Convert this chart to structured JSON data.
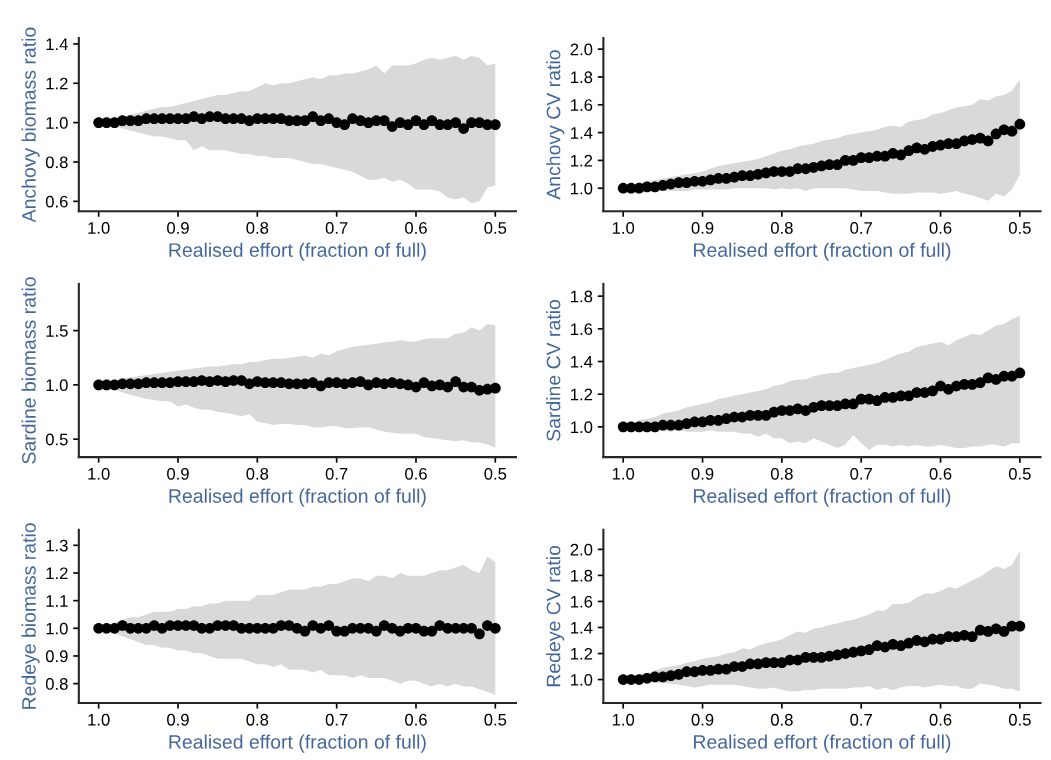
{
  "chart_data": [
    {
      "type": "scatter",
      "xlabel": "Realised effort (fraction of full)",
      "ylabel": "Anchovy biomass ratio",
      "marker": "circle",
      "x": [
        1.0,
        0.99,
        0.98,
        0.97,
        0.96,
        0.95,
        0.94,
        0.93,
        0.92,
        0.91,
        0.9,
        0.89,
        0.88,
        0.87,
        0.86,
        0.85,
        0.84,
        0.83,
        0.82,
        0.81,
        0.8,
        0.79,
        0.78,
        0.77,
        0.76,
        0.75,
        0.74,
        0.73,
        0.72,
        0.71,
        0.7,
        0.69,
        0.68,
        0.67,
        0.66,
        0.65,
        0.64,
        0.63,
        0.62,
        0.61,
        0.6,
        0.59,
        0.58,
        0.57,
        0.56,
        0.55,
        0.54,
        0.53,
        0.52,
        0.51,
        0.5
      ],
      "xlim": [
        1.025,
        0.474
      ],
      "xticks": [
        {
          "value": 1.0,
          "label": "1.0"
        },
        {
          "value": 0.9,
          "label": "0.9"
        },
        {
          "value": 0.8,
          "label": "0.8"
        },
        {
          "value": 0.7,
          "label": "0.7"
        },
        {
          "value": 0.6,
          "label": "0.6"
        },
        {
          "value": 0.5,
          "label": "0.5"
        }
      ],
      "ylim": [
        0.55,
        1.43
      ],
      "yticks": [
        {
          "value": 0.6,
          "label": "0.6"
        },
        {
          "value": 0.8,
          "label": "0.8"
        },
        {
          "value": 1.0,
          "label": "1.0"
        },
        {
          "value": 1.2,
          "label": "1.2"
        },
        {
          "value": 1.4,
          "label": "1.4"
        }
      ],
      "series": [
        {
          "color": "#000000",
          "values": [
            1.0,
            1.0,
            1.0,
            1.01,
            1.01,
            1.01,
            1.02,
            1.02,
            1.02,
            1.02,
            1.02,
            1.02,
            1.03,
            1.02,
            1.03,
            1.03,
            1.02,
            1.02,
            1.02,
            1.01,
            1.02,
            1.02,
            1.02,
            1.02,
            1.01,
            1.01,
            1.01,
            1.03,
            1.01,
            1.02,
            1.0,
            0.99,
            1.02,
            1.01,
            1.0,
            1.01,
            1.01,
            0.98,
            1.0,
            0.99,
            1.01,
            0.99,
            1.01,
            0.99,
            0.99,
            1.0,
            0.97,
            1.0,
            1.0,
            0.99,
            0.99
          ],
          "upper": [
            1.0,
            1.01,
            1.02,
            1.03,
            1.04,
            1.05,
            1.06,
            1.07,
            1.08,
            1.08,
            1.09,
            1.1,
            1.11,
            1.12,
            1.13,
            1.14,
            1.14,
            1.15,
            1.16,
            1.16,
            1.18,
            1.2,
            1.19,
            1.2,
            1.2,
            1.21,
            1.22,
            1.23,
            1.22,
            1.24,
            1.24,
            1.25,
            1.25,
            1.26,
            1.27,
            1.29,
            1.25,
            1.29,
            1.29,
            1.29,
            1.3,
            1.32,
            1.33,
            1.32,
            1.33,
            1.34,
            1.32,
            1.34,
            1.33,
            1.29,
            1.3
          ],
          "lower": [
            1.0,
            0.99,
            0.98,
            0.97,
            0.96,
            0.95,
            0.94,
            0.93,
            0.93,
            0.92,
            0.91,
            0.91,
            0.86,
            0.88,
            0.86,
            0.86,
            0.86,
            0.85,
            0.84,
            0.84,
            0.83,
            0.83,
            0.82,
            0.82,
            0.82,
            0.81,
            0.8,
            0.79,
            0.79,
            0.78,
            0.77,
            0.76,
            0.75,
            0.73,
            0.71,
            0.71,
            0.72,
            0.7,
            0.71,
            0.69,
            0.66,
            0.66,
            0.66,
            0.65,
            0.62,
            0.61,
            0.62,
            0.59,
            0.6,
            0.67,
            0.68
          ]
        }
      ]
    },
    {
      "type": "scatter",
      "xlabel": "Realised effort (fraction of full)",
      "ylabel": "Anchovy CV ratio",
      "marker": "circle",
      "x": [
        1.0,
        0.99,
        0.98,
        0.97,
        0.96,
        0.95,
        0.94,
        0.93,
        0.92,
        0.91,
        0.9,
        0.89,
        0.88,
        0.87,
        0.86,
        0.85,
        0.84,
        0.83,
        0.82,
        0.81,
        0.8,
        0.79,
        0.78,
        0.77,
        0.76,
        0.75,
        0.74,
        0.73,
        0.72,
        0.71,
        0.7,
        0.69,
        0.68,
        0.67,
        0.66,
        0.65,
        0.64,
        0.63,
        0.62,
        0.61,
        0.6,
        0.59,
        0.58,
        0.57,
        0.56,
        0.55,
        0.54,
        0.53,
        0.52,
        0.51,
        0.5
      ],
      "xlim": [
        1.025,
        0.474
      ],
      "xticks": [
        {
          "value": 1.0,
          "label": "1.0"
        },
        {
          "value": 0.9,
          "label": "0.9"
        },
        {
          "value": 0.8,
          "label": "0.8"
        },
        {
          "value": 0.7,
          "label": "0.7"
        },
        {
          "value": 0.6,
          "label": "0.6"
        },
        {
          "value": 0.5,
          "label": "0.5"
        }
      ],
      "ylim": [
        0.835,
        2.08
      ],
      "yticks": [
        {
          "value": 1.0,
          "label": "1.0"
        },
        {
          "value": 1.2,
          "label": "1.2"
        },
        {
          "value": 1.4,
          "label": "1.4"
        },
        {
          "value": 1.6,
          "label": "1.6"
        },
        {
          "value": 1.8,
          "label": "1.8"
        },
        {
          "value": 2.0,
          "label": "2.0"
        }
      ],
      "series": [
        {
          "color": "#000000",
          "values": [
            1.0,
            1.0,
            1.0,
            1.01,
            1.01,
            1.02,
            1.03,
            1.04,
            1.04,
            1.05,
            1.05,
            1.06,
            1.07,
            1.07,
            1.08,
            1.09,
            1.09,
            1.1,
            1.11,
            1.12,
            1.12,
            1.12,
            1.14,
            1.14,
            1.15,
            1.16,
            1.17,
            1.17,
            1.2,
            1.2,
            1.22,
            1.22,
            1.23,
            1.23,
            1.25,
            1.24,
            1.27,
            1.29,
            1.28,
            1.3,
            1.31,
            1.32,
            1.32,
            1.34,
            1.35,
            1.36,
            1.34,
            1.39,
            1.42,
            1.41,
            1.46
          ],
          "upper": [
            1.0,
            1.02,
            1.04,
            1.05,
            1.06,
            1.07,
            1.08,
            1.09,
            1.1,
            1.11,
            1.12,
            1.14,
            1.16,
            1.17,
            1.18,
            1.19,
            1.2,
            1.21,
            1.23,
            1.25,
            1.27,
            1.28,
            1.3,
            1.31,
            1.32,
            1.34,
            1.35,
            1.36,
            1.38,
            1.39,
            1.4,
            1.41,
            1.42,
            1.44,
            1.45,
            1.44,
            1.48,
            1.49,
            1.5,
            1.53,
            1.54,
            1.56,
            1.58,
            1.59,
            1.6,
            1.64,
            1.63,
            1.66,
            1.67,
            1.7,
            1.78
          ],
          "lower": [
            1.0,
            0.99,
            0.99,
            0.98,
            0.98,
            0.98,
            0.98,
            0.98,
            0.98,
            0.99,
            0.99,
            0.99,
            0.99,
            0.99,
            1.0,
            1.0,
            1.0,
            1.0,
            1.0,
            0.99,
            1.0,
            0.99,
            1.0,
            0.98,
            1.0,
            1.0,
            1.0,
            1.0,
            1.0,
            0.99,
            0.98,
            0.98,
            0.98,
            0.97,
            0.96,
            0.96,
            0.96,
            0.97,
            0.97,
            0.97,
            0.96,
            0.97,
            0.98,
            0.96,
            0.95,
            0.93,
            0.91,
            0.96,
            0.94,
            0.99,
            1.1
          ]
        }
      ]
    },
    {
      "type": "scatter",
      "xlabel": "Realised effort (fraction of full)",
      "ylabel": "Sardine biomass ratio",
      "marker": "circle",
      "x": [
        1.0,
        0.99,
        0.98,
        0.97,
        0.96,
        0.95,
        0.94,
        0.93,
        0.92,
        0.91,
        0.9,
        0.89,
        0.88,
        0.87,
        0.86,
        0.85,
        0.84,
        0.83,
        0.82,
        0.81,
        0.8,
        0.79,
        0.78,
        0.77,
        0.76,
        0.75,
        0.74,
        0.73,
        0.72,
        0.71,
        0.7,
        0.69,
        0.68,
        0.67,
        0.66,
        0.65,
        0.64,
        0.63,
        0.62,
        0.61,
        0.6,
        0.59,
        0.58,
        0.57,
        0.56,
        0.55,
        0.54,
        0.53,
        0.52,
        0.51,
        0.5
      ],
      "xlim": [
        1.025,
        0.474
      ],
      "xticks": [
        {
          "value": 1.0,
          "label": "1.0"
        },
        {
          "value": 0.9,
          "label": "0.9"
        },
        {
          "value": 0.8,
          "label": "0.8"
        },
        {
          "value": 0.7,
          "label": "0.7"
        },
        {
          "value": 0.6,
          "label": "0.6"
        },
        {
          "value": 0.5,
          "label": "0.5"
        }
      ],
      "ylim": [
        0.335,
        1.93
      ],
      "yticks": [
        {
          "value": 0.5,
          "label": "0.5"
        },
        {
          "value": 1.0,
          "label": "1.0"
        },
        {
          "value": 1.5,
          "label": "1.5"
        }
      ],
      "series": [
        {
          "color": "#000000",
          "values": [
            1.0,
            1.0,
            1.0,
            1.01,
            1.01,
            1.01,
            1.02,
            1.02,
            1.02,
            1.02,
            1.03,
            1.03,
            1.03,
            1.04,
            1.03,
            1.04,
            1.03,
            1.04,
            1.04,
            1.01,
            1.03,
            1.02,
            1.02,
            1.02,
            1.01,
            1.01,
            1.01,
            1.02,
            0.99,
            1.02,
            1.02,
            1.01,
            1.02,
            1.03,
            1.0,
            1.02,
            1.01,
            1.02,
            1.01,
            1.0,
            0.98,
            1.02,
            0.99,
            1.0,
            0.98,
            1.03,
            0.98,
            0.98,
            0.95,
            0.96,
            0.97
          ],
          "upper": [
            1.0,
            1.02,
            1.04,
            1.06,
            1.07,
            1.08,
            1.09,
            1.1,
            1.11,
            1.12,
            1.13,
            1.14,
            1.15,
            1.16,
            1.17,
            1.17,
            1.18,
            1.19,
            1.19,
            1.21,
            1.21,
            1.23,
            1.24,
            1.24,
            1.25,
            1.26,
            1.27,
            1.25,
            1.29,
            1.27,
            1.31,
            1.33,
            1.35,
            1.36,
            1.37,
            1.38,
            1.39,
            1.4,
            1.41,
            1.4,
            1.4,
            1.42,
            1.43,
            1.43,
            1.43,
            1.47,
            1.48,
            1.53,
            1.5,
            1.56,
            1.55
          ],
          "lower": [
            1.0,
            0.98,
            0.96,
            0.93,
            0.91,
            0.89,
            0.87,
            0.86,
            0.85,
            0.85,
            0.8,
            0.82,
            0.79,
            0.77,
            0.77,
            0.75,
            0.74,
            0.73,
            0.71,
            0.73,
            0.66,
            0.65,
            0.63,
            0.64,
            0.64,
            0.63,
            0.63,
            0.61,
            0.61,
            0.62,
            0.62,
            0.6,
            0.6,
            0.61,
            0.61,
            0.59,
            0.57,
            0.56,
            0.55,
            0.55,
            0.55,
            0.52,
            0.51,
            0.5,
            0.49,
            0.48,
            0.49,
            0.47,
            0.47,
            0.45,
            0.42
          ]
        }
      ]
    },
    {
      "type": "scatter",
      "xlabel": "Realised effort (fraction of full)",
      "ylabel": "Sardine CV ratio",
      "marker": "circle",
      "x": [
        1.0,
        0.99,
        0.98,
        0.97,
        0.96,
        0.95,
        0.94,
        0.93,
        0.92,
        0.91,
        0.9,
        0.89,
        0.88,
        0.87,
        0.86,
        0.85,
        0.84,
        0.83,
        0.82,
        0.81,
        0.8,
        0.79,
        0.78,
        0.77,
        0.76,
        0.75,
        0.74,
        0.73,
        0.72,
        0.71,
        0.7,
        0.69,
        0.68,
        0.67,
        0.66,
        0.65,
        0.64,
        0.63,
        0.62,
        0.61,
        0.6,
        0.59,
        0.58,
        0.57,
        0.56,
        0.55,
        0.54,
        0.53,
        0.52,
        0.51,
        0.5
      ],
      "xlim": [
        1.025,
        0.474
      ],
      "xticks": [
        {
          "value": 1.0,
          "label": "1.0"
        },
        {
          "value": 0.9,
          "label": "0.9"
        },
        {
          "value": 0.8,
          "label": "0.8"
        },
        {
          "value": 0.7,
          "label": "0.7"
        },
        {
          "value": 0.6,
          "label": "0.6"
        },
        {
          "value": 0.5,
          "label": "0.5"
        }
      ],
      "ylim": [
        0.815,
        1.875
      ],
      "yticks": [
        {
          "value": 1.0,
          "label": "1.0"
        },
        {
          "value": 1.2,
          "label": "1.2"
        },
        {
          "value": 1.4,
          "label": "1.4"
        },
        {
          "value": 1.6,
          "label": "1.6"
        },
        {
          "value": 1.8,
          "label": "1.8"
        }
      ],
      "series": [
        {
          "color": "#000000",
          "values": [
            1.0,
            1.0,
            1.0,
            1.0,
            1.0,
            1.01,
            1.01,
            1.01,
            1.02,
            1.03,
            1.03,
            1.04,
            1.04,
            1.05,
            1.06,
            1.06,
            1.07,
            1.07,
            1.07,
            1.09,
            1.1,
            1.1,
            1.11,
            1.1,
            1.12,
            1.13,
            1.13,
            1.13,
            1.14,
            1.14,
            1.17,
            1.17,
            1.16,
            1.18,
            1.18,
            1.19,
            1.19,
            1.21,
            1.21,
            1.22,
            1.25,
            1.23,
            1.25,
            1.26,
            1.26,
            1.27,
            1.3,
            1.29,
            1.31,
            1.31,
            1.33
          ],
          "upper": [
            1.0,
            1.02,
            1.04,
            1.05,
            1.06,
            1.08,
            1.09,
            1.1,
            1.12,
            1.13,
            1.14,
            1.15,
            1.17,
            1.18,
            1.19,
            1.2,
            1.21,
            1.22,
            1.23,
            1.25,
            1.26,
            1.28,
            1.29,
            1.29,
            1.31,
            1.32,
            1.33,
            1.33,
            1.35,
            1.36,
            1.37,
            1.38,
            1.39,
            1.41,
            1.43,
            1.45,
            1.46,
            1.49,
            1.5,
            1.51,
            1.52,
            1.5,
            1.53,
            1.55,
            1.57,
            1.56,
            1.59,
            1.62,
            1.63,
            1.66,
            1.68
          ],
          "lower": [
            1.0,
            0.99,
            0.99,
            0.98,
            0.98,
            0.98,
            0.97,
            0.98,
            0.97,
            0.97,
            0.97,
            0.98,
            0.97,
            0.97,
            0.97,
            0.96,
            0.96,
            0.94,
            0.96,
            0.93,
            0.93,
            0.9,
            0.91,
            0.9,
            0.93,
            0.91,
            0.89,
            0.87,
            0.89,
            0.95,
            0.9,
            0.86,
            0.89,
            0.89,
            0.88,
            0.89,
            0.88,
            0.89,
            0.88,
            0.88,
            0.89,
            0.88,
            0.87,
            0.87,
            0.88,
            0.88,
            0.89,
            0.89,
            0.88,
            0.9,
            0.9
          ]
        }
      ]
    },
    {
      "type": "scatter",
      "xlabel": "Realised effort (fraction of full)",
      "ylabel": "Redeye biomass ratio",
      "marker": "circle",
      "x": [
        1.0,
        0.99,
        0.98,
        0.97,
        0.96,
        0.95,
        0.94,
        0.93,
        0.92,
        0.91,
        0.9,
        0.89,
        0.88,
        0.87,
        0.86,
        0.85,
        0.84,
        0.83,
        0.82,
        0.81,
        0.8,
        0.79,
        0.78,
        0.77,
        0.76,
        0.75,
        0.74,
        0.73,
        0.72,
        0.71,
        0.7,
        0.69,
        0.68,
        0.67,
        0.66,
        0.65,
        0.64,
        0.63,
        0.62,
        0.61,
        0.6,
        0.59,
        0.58,
        0.57,
        0.56,
        0.55,
        0.54,
        0.53,
        0.52,
        0.51,
        0.5
      ],
      "xlim": [
        1.025,
        0.474
      ],
      "xticks": [
        {
          "value": 1.0,
          "label": "1.0"
        },
        {
          "value": 0.9,
          "label": "0.9"
        },
        {
          "value": 0.8,
          "label": "0.8"
        },
        {
          "value": 0.7,
          "label": "0.7"
        },
        {
          "value": 0.6,
          "label": "0.6"
        },
        {
          "value": 0.5,
          "label": "0.5"
        }
      ],
      "ylim": [
        0.73,
        1.356
      ],
      "yticks": [
        {
          "value": 0.8,
          "label": "0.8"
        },
        {
          "value": 0.9,
          "label": "0.9"
        },
        {
          "value": 1.0,
          "label": "1.0"
        },
        {
          "value": 1.1,
          "label": "1.1"
        },
        {
          "value": 1.2,
          "label": "1.2"
        },
        {
          "value": 1.3,
          "label": "1.3"
        }
      ],
      "series": [
        {
          "color": "#000000",
          "values": [
            1.0,
            1.0,
            1.0,
            1.01,
            1.0,
            1.0,
            1.0,
            1.01,
            1.0,
            1.01,
            1.01,
            1.01,
            1.01,
            1.0,
            1.0,
            1.01,
            1.01,
            1.01,
            1.0,
            1.0,
            1.0,
            1.0,
            1.0,
            1.01,
            1.01,
            1.0,
            0.99,
            1.01,
            1.0,
            1.01,
            0.99,
            0.99,
            1.0,
            1.0,
            1.0,
            0.99,
            1.01,
            1.0,
            0.99,
            1.0,
            1.0,
            0.99,
            0.99,
            1.01,
            1.0,
            1.0,
            1.0,
            1.0,
            0.98,
            1.01,
            1.0
          ],
          "upper": [
            1.0,
            1.01,
            1.02,
            1.03,
            1.04,
            1.04,
            1.05,
            1.06,
            1.06,
            1.06,
            1.07,
            1.07,
            1.08,
            1.08,
            1.09,
            1.09,
            1.1,
            1.1,
            1.1,
            1.1,
            1.12,
            1.12,
            1.12,
            1.13,
            1.14,
            1.14,
            1.14,
            1.15,
            1.15,
            1.16,
            1.16,
            1.17,
            1.18,
            1.18,
            1.17,
            1.19,
            1.19,
            1.18,
            1.2,
            1.19,
            1.19,
            1.19,
            1.2,
            1.21,
            1.21,
            1.22,
            1.23,
            1.21,
            1.2,
            1.26,
            1.24
          ],
          "lower": [
            1.0,
            0.99,
            0.98,
            0.97,
            0.96,
            0.95,
            0.94,
            0.94,
            0.93,
            0.93,
            0.92,
            0.92,
            0.91,
            0.91,
            0.9,
            0.89,
            0.89,
            0.89,
            0.89,
            0.88,
            0.87,
            0.87,
            0.86,
            0.87,
            0.85,
            0.85,
            0.85,
            0.84,
            0.85,
            0.83,
            0.83,
            0.83,
            0.82,
            0.83,
            0.82,
            0.82,
            0.82,
            0.81,
            0.8,
            0.81,
            0.81,
            0.8,
            0.79,
            0.8,
            0.79,
            0.8,
            0.79,
            0.79,
            0.78,
            0.77,
            0.76
          ]
        }
      ]
    },
    {
      "type": "scatter",
      "xlabel": "Realised effort (fraction of full)",
      "ylabel": "Redeye CV ratio",
      "marker": "circle",
      "x": [
        1.0,
        0.99,
        0.98,
        0.97,
        0.96,
        0.95,
        0.94,
        0.93,
        0.92,
        0.91,
        0.9,
        0.89,
        0.88,
        0.87,
        0.86,
        0.85,
        0.84,
        0.83,
        0.82,
        0.81,
        0.8,
        0.79,
        0.78,
        0.77,
        0.76,
        0.75,
        0.74,
        0.73,
        0.72,
        0.71,
        0.7,
        0.69,
        0.68,
        0.67,
        0.66,
        0.65,
        0.64,
        0.63,
        0.62,
        0.61,
        0.6,
        0.59,
        0.58,
        0.57,
        0.56,
        0.55,
        0.54,
        0.53,
        0.52,
        0.51,
        0.5
      ],
      "xlim": [
        1.025,
        0.474
      ],
      "xticks": [
        {
          "value": 1.0,
          "label": "1.0"
        },
        {
          "value": 0.9,
          "label": "0.9"
        },
        {
          "value": 0.8,
          "label": "0.8"
        },
        {
          "value": 0.7,
          "label": "0.7"
        },
        {
          "value": 0.6,
          "label": "0.6"
        },
        {
          "value": 0.5,
          "label": "0.5"
        }
      ],
      "ylim": [
        0.82,
        2.15
      ],
      "yticks": [
        {
          "value": 1.0,
          "label": "1.0"
        },
        {
          "value": 1.2,
          "label": "1.2"
        },
        {
          "value": 1.4,
          "label": "1.4"
        },
        {
          "value": 1.6,
          "label": "1.6"
        },
        {
          "value": 1.8,
          "label": "1.8"
        },
        {
          "value": 2.0,
          "label": "2.0"
        }
      ],
      "series": [
        {
          "color": "#000000",
          "values": [
            1.0,
            1.0,
            1.0,
            1.01,
            1.02,
            1.02,
            1.03,
            1.04,
            1.06,
            1.06,
            1.07,
            1.07,
            1.08,
            1.08,
            1.1,
            1.1,
            1.12,
            1.12,
            1.13,
            1.13,
            1.13,
            1.15,
            1.15,
            1.17,
            1.17,
            1.17,
            1.18,
            1.19,
            1.2,
            1.21,
            1.22,
            1.23,
            1.26,
            1.25,
            1.27,
            1.26,
            1.28,
            1.3,
            1.29,
            1.31,
            1.31,
            1.33,
            1.33,
            1.34,
            1.33,
            1.38,
            1.37,
            1.39,
            1.37,
            1.41,
            1.41
          ],
          "upper": [
            1.0,
            1.02,
            1.04,
            1.05,
            1.07,
            1.09,
            1.1,
            1.11,
            1.13,
            1.14,
            1.16,
            1.17,
            1.18,
            1.2,
            1.21,
            1.24,
            1.23,
            1.26,
            1.28,
            1.29,
            1.31,
            1.34,
            1.37,
            1.36,
            1.39,
            1.4,
            1.42,
            1.43,
            1.45,
            1.46,
            1.48,
            1.5,
            1.53,
            1.53,
            1.58,
            1.58,
            1.59,
            1.63,
            1.66,
            1.66,
            1.68,
            1.71,
            1.7,
            1.73,
            1.76,
            1.79,
            1.83,
            1.87,
            1.85,
            1.88,
            1.99
          ],
          "lower": [
            1.0,
            0.99,
            0.99,
            0.98,
            0.98,
            0.97,
            0.97,
            0.96,
            0.95,
            0.94,
            0.95,
            0.96,
            0.96,
            0.96,
            0.96,
            0.95,
            0.94,
            0.93,
            0.93,
            0.94,
            0.92,
            0.91,
            0.91,
            0.92,
            0.92,
            0.93,
            0.93,
            0.93,
            0.93,
            0.94,
            0.94,
            0.95,
            0.92,
            0.94,
            0.92,
            0.94,
            0.95,
            0.95,
            0.94,
            0.95,
            0.96,
            0.95,
            0.95,
            0.93,
            0.93,
            0.97,
            0.96,
            0.95,
            0.93,
            0.93,
            0.91
          ]
        }
      ]
    }
  ]
}
